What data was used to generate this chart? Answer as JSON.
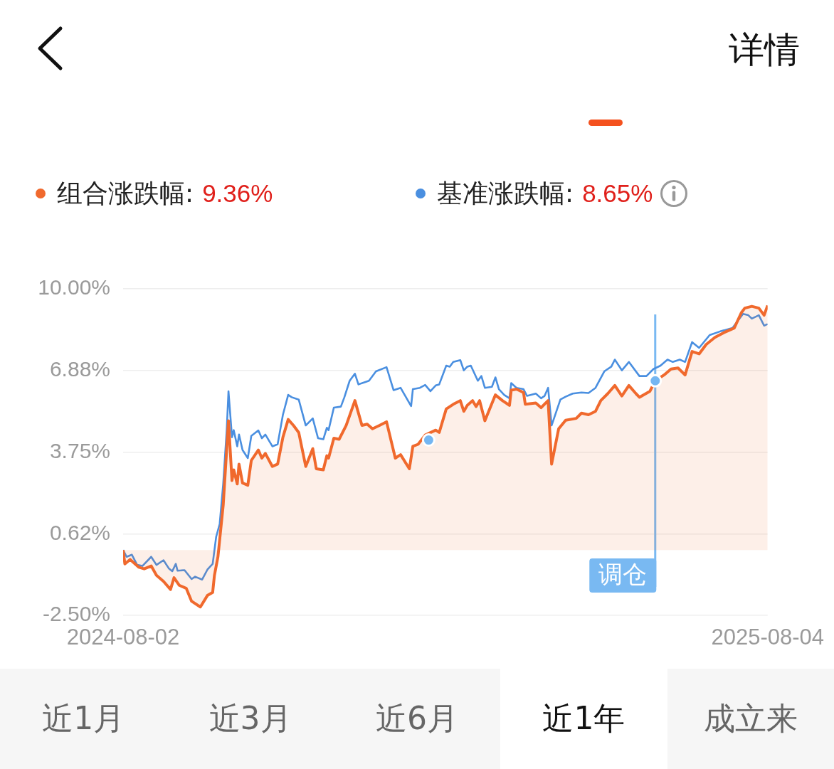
{
  "chart_data": {
    "type": "line",
    "legend": "top",
    "grid": "y",
    "xlim": [
      "2024-08-02",
      "2025-08-04"
    ],
    "xticks": [
      "2024-08-02",
      "2025-08-04"
    ],
    "ylim": [
      -2.5,
      10
    ],
    "yticks": [
      {
        "value": -2.5,
        "label": "-2.50%"
      },
      {
        "value": 0.625,
        "label": "0.62%"
      },
      {
        "value": 3.75,
        "label": "3.75%"
      },
      {
        "value": 6.875,
        "label": "6.88%"
      },
      {
        "value": 10,
        "label": "10.00%"
      }
    ],
    "series": [
      {
        "name": "组合涨跌幅:",
        "type": "area",
        "color": "#f0692d",
        "x": [
          "2024-08-02",
          "2024-08-03",
          "2024-08-06",
          "2024-08-11",
          "2024-08-14",
          "2024-08-18",
          "2024-08-21",
          "2024-08-25",
          "2024-08-29",
          "2024-08-31",
          "2024-09-03",
          "2024-09-07",
          "2024-09-10",
          "2024-09-15",
          "2024-09-19",
          "2024-09-22",
          "2024-09-23",
          "2024-09-25",
          "2024-09-28",
          "2024-09-30",
          "2024-10-01",
          "2024-10-03",
          "2024-10-04",
          "2024-10-06",
          "2024-10-07",
          "2024-10-09",
          "2024-10-12",
          "2024-10-14",
          "2024-10-18",
          "2024-10-20",
          "2024-10-22",
          "2024-10-26",
          "2024-10-29",
          "2024-11-01",
          "2024-11-04",
          "2024-11-07",
          "2024-11-10",
          "2024-11-14",
          "2024-11-18",
          "2024-11-20",
          "2024-11-24",
          "2024-11-26",
          "2024-11-27",
          "2024-11-30",
          "2024-12-03",
          "2024-12-07",
          "2024-12-12",
          "2024-12-16",
          "2024-12-19",
          "2024-12-22",
          "2024-12-26",
          "2024-12-30",
          "2025-01-04",
          "2025-01-07",
          "2025-01-12",
          "2025-01-14",
          "2025-01-17",
          "2025-01-21",
          "2025-01-27",
          "2025-01-29",
          "2025-01-31",
          "2025-02-02",
          "2025-02-06",
          "2025-02-10",
          "2025-02-12",
          "2025-02-14",
          "2025-02-17",
          "2025-02-19",
          "2025-02-21",
          "2025-02-24",
          "2025-03-02",
          "2025-03-06",
          "2025-03-10",
          "2025-03-11",
          "2025-03-14",
          "2025-03-18",
          "2025-03-19",
          "2025-03-25",
          "2025-03-28",
          "2025-04-01",
          "2025-04-03",
          "2025-04-07",
          "2025-04-11",
          "2025-04-17",
          "2025-04-20",
          "2025-04-24",
          "2025-04-28",
          "2025-05-01",
          "2025-05-05",
          "2025-05-09",
          "2025-05-13",
          "2025-05-17",
          "2025-05-21",
          "2025-05-23",
          "2025-05-29",
          "2025-06-01",
          "2025-06-06",
          "2025-06-10",
          "2025-06-14",
          "2025-06-18",
          "2025-06-22",
          "2025-06-26",
          "2025-06-30",
          "2025-07-05",
          "2025-07-10",
          "2025-07-16",
          "2025-07-20",
          "2025-07-22",
          "2025-07-26",
          "2025-07-30",
          "2025-08-02",
          "2025-08-04"
        ],
        "values": [
          0,
          -0.53,
          -0.36,
          -0.66,
          -0.72,
          -0.61,
          -0.97,
          -1.2,
          -1.51,
          -1.06,
          -1.35,
          -1.47,
          -1.96,
          -2.18,
          -1.74,
          -1.62,
          -0.97,
          -0.26,
          1.72,
          3.88,
          4.95,
          2.66,
          3.07,
          2.53,
          3.29,
          2.57,
          2.48,
          3.43,
          3.83,
          3.52,
          3.7,
          3.2,
          3.29,
          4.32,
          5.0,
          4.77,
          4.5,
          3.2,
          3.88,
          3.11,
          3.07,
          3.61,
          3.52,
          4.28,
          4.24,
          4.77,
          5.72,
          4.77,
          4.82,
          4.64,
          4.77,
          4.91,
          3.52,
          3.65,
          3.11,
          3.97,
          4.05,
          4.4,
          4.59,
          4.5,
          4.95,
          5.4,
          5.58,
          5.72,
          5.31,
          5.54,
          5.72,
          5.49,
          5.72,
          4.95,
          5.94,
          5.72,
          5.54,
          6.12,
          6.16,
          6.03,
          5.58,
          5.63,
          5.45,
          5.72,
          3.29,
          4.64,
          4.97,
          5.04,
          5.24,
          5.18,
          5.31,
          5.72,
          5.99,
          6.3,
          5.9,
          6.3,
          5.99,
          5.85,
          6.08,
          6.48,
          6.7,
          6.93,
          6.97,
          6.7,
          7.6,
          7.51,
          7.87,
          8.14,
          8.32,
          8.5,
          9.08,
          9.26,
          9.33,
          9.26,
          8.99,
          9.36
        ]
      },
      {
        "name": "基准涨跌幅:",
        "type": "line",
        "color": "#4a8fe0",
        "x": [
          "2024-08-02",
          "2024-08-04",
          "2024-08-07",
          "2024-08-10",
          "2024-08-13",
          "2024-08-18",
          "2024-08-21",
          "2024-08-25",
          "2024-08-28",
          "2024-08-30",
          "2024-09-01",
          "2024-09-02",
          "2024-09-06",
          "2024-09-10",
          "2024-09-12",
          "2024-09-16",
          "2024-09-19",
          "2024-09-22",
          "2024-09-24",
          "2024-09-26",
          "2024-09-28",
          "2024-09-30",
          "2024-10-01",
          "2024-10-03",
          "2024-10-04",
          "2024-10-06",
          "2024-10-07",
          "2024-10-09",
          "2024-10-12",
          "2024-10-14",
          "2024-10-18",
          "2024-10-20",
          "2024-10-22",
          "2024-10-26",
          "2024-10-29",
          "2024-11-01",
          "2024-11-04",
          "2024-11-06",
          "2024-11-10",
          "2024-11-14",
          "2024-11-18",
          "2024-11-21",
          "2024-11-24",
          "2024-11-26",
          "2024-11-27",
          "2024-11-30",
          "2024-12-04",
          "2024-12-06",
          "2024-12-09",
          "2024-12-12",
          "2024-12-14",
          "2024-12-20",
          "2024-12-24",
          "2024-12-30",
          "2025-01-03",
          "2025-01-07",
          "2025-01-13",
          "2025-01-14",
          "2025-01-18",
          "2025-01-21",
          "2025-01-24",
          "2025-01-27",
          "2025-01-29",
          "2025-02-02",
          "2025-02-04",
          "2025-02-06",
          "2025-02-10",
          "2025-02-12",
          "2025-02-14",
          "2025-02-16",
          "2025-02-20",
          "2025-02-22",
          "2025-02-24",
          "2025-02-28",
          "2025-03-02",
          "2025-03-04",
          "2025-03-07",
          "2025-03-10",
          "2025-03-11",
          "2025-03-14",
          "2025-03-18",
          "2025-03-20",
          "2025-03-25",
          "2025-03-28",
          "2025-03-30",
          "2025-04-01",
          "2025-04-03",
          "2025-04-08",
          "2025-04-11",
          "2025-04-15",
          "2025-04-20",
          "2025-04-24",
          "2025-04-28",
          "2025-05-03",
          "2025-05-07",
          "2025-05-09",
          "2025-05-13",
          "2025-05-17",
          "2025-05-23",
          "2025-05-27",
          "2025-05-31",
          "2025-06-04",
          "2025-06-08",
          "2025-06-11",
          "2025-06-15",
          "2025-06-18",
          "2025-06-22",
          "2025-06-26",
          "2025-07-02",
          "2025-07-08",
          "2025-07-15",
          "2025-07-21",
          "2025-07-24",
          "2025-07-26",
          "2025-07-30",
          "2025-08-02",
          "2025-08-04"
        ],
        "values": [
          0,
          -0.26,
          -0.18,
          -0.57,
          -0.61,
          -0.26,
          -0.57,
          -0.39,
          -0.7,
          -0.81,
          -0.53,
          -0.79,
          -0.77,
          -1.11,
          -1.02,
          -1.13,
          -0.75,
          -0.53,
          0.51,
          1.0,
          2.53,
          4.59,
          6.08,
          4.32,
          4.59,
          3.97,
          4.42,
          3.83,
          3.52,
          4.37,
          4.58,
          4.28,
          4.42,
          3.97,
          4.05,
          5.18,
          5.94,
          5.85,
          5.76,
          4.77,
          5.04,
          4.28,
          4.24,
          4.68,
          4.59,
          5.45,
          5.49,
          5.85,
          6.48,
          6.75,
          6.34,
          6.48,
          6.84,
          7.0,
          6.12,
          6.21,
          5.51,
          6.16,
          6.21,
          6.32,
          6.08,
          6.3,
          6.34,
          7.06,
          7.02,
          7.2,
          7.27,
          6.88,
          7.02,
          7.06,
          6.48,
          6.66,
          6.21,
          6.25,
          6.61,
          6.16,
          5.94,
          5.81,
          6.39,
          6.21,
          6.16,
          5.9,
          5.99,
          5.81,
          5.9,
          6.21,
          4.77,
          5.76,
          5.87,
          5.99,
          6.03,
          6.01,
          6.21,
          6.84,
          7.02,
          7.29,
          6.88,
          7.2,
          6.66,
          6.66,
          6.93,
          7.06,
          7.29,
          7.2,
          7.29,
          7.2,
          7.96,
          7.74,
          8.23,
          8.37,
          8.5,
          9.04,
          8.99,
          8.86,
          8.99,
          8.59,
          8.65
        ]
      },
      {
        "type": "scatter",
        "marker": "circle",
        "color": "#74b6f2",
        "x": [
          "2025-01-23",
          "2025-06-01"
        ],
        "values": [
          4.21,
          6.48
        ]
      }
    ],
    "ref_lines": [
      {
        "axis": "x",
        "value": "2025-06-01",
        "label": "调仓",
        "color": "#79b9f2"
      }
    ],
    "annotations": [
      "详情",
      "9.36%",
      "8.65%",
      "近1月",
      "近3月",
      "近6月",
      "近1年",
      "成立来"
    ]
  }
}
